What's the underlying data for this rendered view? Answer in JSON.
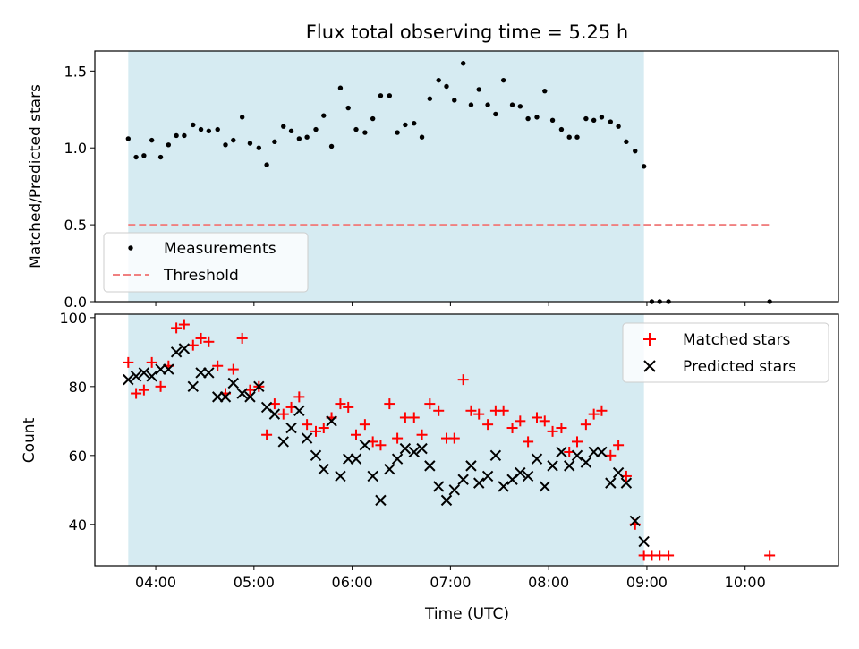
{
  "chart_data": [
    {
      "type": "scatter",
      "title": "Flux total observing time = 5.25 h",
      "ylabel": "Matched/Predicted stars",
      "xlabel": "",
      "xlim": [
        3.38,
        10.95
      ],
      "ylim": [
        0,
        1.63
      ],
      "x_ticks": [
        "04:00",
        "05:00",
        "06:00",
        "07:00",
        "08:00",
        "09:00",
        "10:00"
      ],
      "x_tick_values": [
        4,
        5,
        6,
        7,
        8,
        9,
        10
      ],
      "y_ticks": [
        "0.0",
        "0.5",
        "1.0",
        "1.5"
      ],
      "y_tick_values": [
        0,
        0.5,
        1.0,
        1.5
      ],
      "shaded_span": [
        3.72,
        8.97
      ],
      "legend_position": "lower-left",
      "series": [
        {
          "name": "Measurements",
          "marker": "dot",
          "color": "#000000",
          "x": [
            3.72,
            3.8,
            3.88,
            3.96,
            4.05,
            4.13,
            4.21,
            4.29,
            4.38,
            4.46,
            4.54,
            4.63,
            4.71,
            4.79,
            4.88,
            4.96,
            5.05,
            5.13,
            5.21,
            5.3,
            5.38,
            5.46,
            5.54,
            5.63,
            5.71,
            5.79,
            5.88,
            5.96,
            6.04,
            6.13,
            6.21,
            6.29,
            6.38,
            6.46,
            6.54,
            6.63,
            6.71,
            6.79,
            6.88,
            6.96,
            7.04,
            7.13,
            7.21,
            7.29,
            7.38,
            7.46,
            7.54,
            7.63,
            7.71,
            7.79,
            7.88,
            7.96,
            8.04,
            8.13,
            8.21,
            8.29,
            8.38,
            8.46,
            8.54,
            8.63,
            8.71,
            8.79,
            8.88,
            8.97,
            9.05,
            9.13,
            9.22,
            10.25
          ],
          "y": [
            1.06,
            0.94,
            0.95,
            1.05,
            0.94,
            1.02,
            1.08,
            1.08,
            1.15,
            1.12,
            1.11,
            1.12,
            1.02,
            1.05,
            1.2,
            1.03,
            1.0,
            0.89,
            1.04,
            1.14,
            1.11,
            1.06,
            1.07,
            1.12,
            1.21,
            1.01,
            1.39,
            1.26,
            1.12,
            1.1,
            1.19,
            1.34,
            1.34,
            1.1,
            1.15,
            1.16,
            1.07,
            1.32,
            1.44,
            1.4,
            1.31,
            1.55,
            1.28,
            1.38,
            1.28,
            1.22,
            1.44,
            1.28,
            1.27,
            1.19,
            1.2,
            1.37,
            1.18,
            1.12,
            1.07,
            1.07,
            1.19,
            1.18,
            1.2,
            1.17,
            1.14,
            1.04,
            0.98,
            0.88,
            0.0,
            0.0,
            0.0,
            0.0
          ]
        },
        {
          "name": "Threshold",
          "marker": "dashed-line",
          "color": "#f08080",
          "x": [
            3.72,
            10.25
          ],
          "y": [
            0.5,
            0.5
          ]
        }
      ]
    },
    {
      "type": "scatter",
      "title": "",
      "ylabel": "Count",
      "xlabel": "Time (UTC)",
      "xlim": [
        3.38,
        10.95
      ],
      "ylim": [
        28,
        101
      ],
      "x_ticks": [
        "04:00",
        "05:00",
        "06:00",
        "07:00",
        "08:00",
        "09:00",
        "10:00"
      ],
      "x_tick_values": [
        4,
        5,
        6,
        7,
        8,
        9,
        10
      ],
      "y_ticks": [
        "40",
        "60",
        "80",
        "100"
      ],
      "y_tick_values": [
        40,
        60,
        80,
        100
      ],
      "shaded_span": [
        3.72,
        8.97
      ],
      "legend_position": "upper-right",
      "series": [
        {
          "name": "Matched stars",
          "marker": "plus",
          "color": "#ff0000",
          "x": [
            3.72,
            3.8,
            3.88,
            3.96,
            4.05,
            4.13,
            4.21,
            4.29,
            4.38,
            4.46,
            4.54,
            4.63,
            4.71,
            4.79,
            4.88,
            4.96,
            5.05,
            5.13,
            5.21,
            5.3,
            5.38,
            5.46,
            5.54,
            5.63,
            5.71,
            5.79,
            5.88,
            5.96,
            6.04,
            6.13,
            6.21,
            6.29,
            6.38,
            6.46,
            6.54,
            6.63,
            6.71,
            6.79,
            6.88,
            6.96,
            7.04,
            7.13,
            7.21,
            7.29,
            7.38,
            7.46,
            7.54,
            7.63,
            7.71,
            7.79,
            7.88,
            7.96,
            8.04,
            8.13,
            8.21,
            8.29,
            8.38,
            8.46,
            8.54,
            8.63,
            8.71,
            8.79,
            8.88,
            8.97,
            9.05,
            9.13,
            9.22,
            10.25
          ],
          "y": [
            87,
            78,
            79,
            87,
            80,
            86,
            97,
            98,
            92,
            94,
            93,
            86,
            78,
            85,
            94,
            79,
            80,
            66,
            75,
            72,
            74,
            77,
            69,
            67,
            68,
            71,
            75,
            74,
            66,
            69,
            64,
            63,
            75,
            65,
            71,
            71,
            66,
            75,
            73,
            65,
            65,
            82,
            73,
            72,
            69,
            73,
            73,
            68,
            70,
            64,
            71,
            70,
            67,
            68,
            61,
            64,
            69,
            72,
            73,
            60,
            63,
            54,
            40,
            31,
            31,
            31,
            31,
            31
          ]
        },
        {
          "name": "Predicted stars",
          "marker": "x",
          "color": "#000000",
          "x": [
            3.72,
            3.8,
            3.88,
            3.96,
            4.05,
            4.13,
            4.21,
            4.29,
            4.38,
            4.46,
            4.54,
            4.63,
            4.71,
            4.79,
            4.88,
            4.96,
            5.05,
            5.13,
            5.21,
            5.3,
            5.38,
            5.46,
            5.54,
            5.63,
            5.71,
            5.79,
            5.88,
            5.96,
            6.04,
            6.13,
            6.21,
            6.29,
            6.38,
            6.46,
            6.54,
            6.63,
            6.71,
            6.79,
            6.88,
            6.96,
            7.04,
            7.13,
            7.21,
            7.29,
            7.38,
            7.46,
            7.54,
            7.63,
            7.71,
            7.79,
            7.88,
            7.96,
            8.04,
            8.13,
            8.21,
            8.29,
            8.38,
            8.46,
            8.54,
            8.63,
            8.71,
            8.79,
            8.88,
            8.97
          ],
          "y": [
            82,
            83,
            84,
            83,
            85,
            85,
            90,
            91,
            80,
            84,
            84,
            77,
            77,
            81,
            78,
            77,
            80,
            74,
            72,
            64,
            68,
            73,
            65,
            60,
            56,
            70,
            54,
            59,
            59,
            63,
            54,
            47,
            56,
            59,
            62,
            61,
            62,
            57,
            51,
            47,
            50,
            53,
            57,
            52,
            54,
            60,
            51,
            53,
            55,
            54,
            59,
            51,
            57,
            61,
            57,
            60,
            58,
            61,
            61,
            52,
            55,
            52,
            41,
            35
          ]
        }
      ]
    }
  ]
}
